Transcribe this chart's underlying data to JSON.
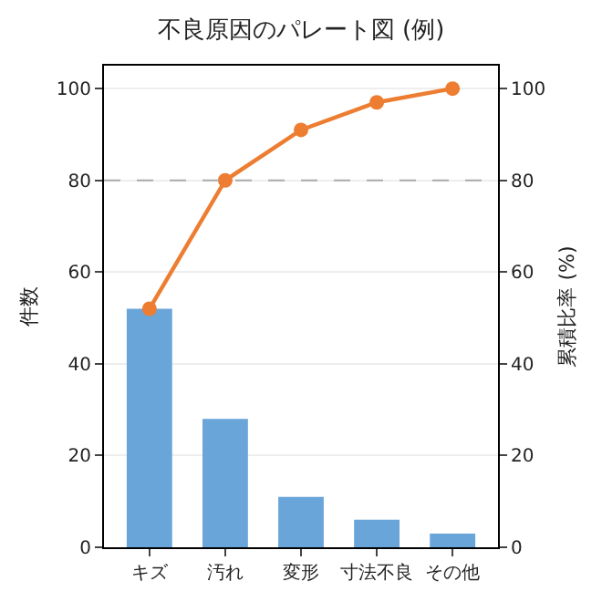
{
  "chart_data": {
    "type": "bar",
    "title": "不良原因のパレート図 (例)",
    "ylabel": "件数",
    "y2label": "累積比率 (%)",
    "categories": [
      "キズ",
      "汚れ",
      "変形",
      "寸法不良",
      "その他"
    ],
    "series": [
      {
        "color": "#6aa5da",
        "values": [
          52,
          28,
          11,
          6,
          3
        ]
      },
      {
        "type": "line",
        "axis": "y2",
        "color": "#ed7d31",
        "values": [
          52,
          80,
          91,
          97,
          100
        ],
        "marker": "circle",
        "line_style": "solid"
      }
    ],
    "ylim": [
      0,
      105
    ],
    "yticks": [
      0,
      20,
      40,
      60,
      80,
      100
    ],
    "y2lim": [
      0,
      105
    ],
    "y2ticks": [
      0,
      20,
      40,
      60,
      80,
      100
    ],
    "ref_lines": [
      {
        "axis": "y",
        "value": 80,
        "color": "#aaaaaa",
        "line_style": "dashed"
      }
    ],
    "grid": "y"
  }
}
